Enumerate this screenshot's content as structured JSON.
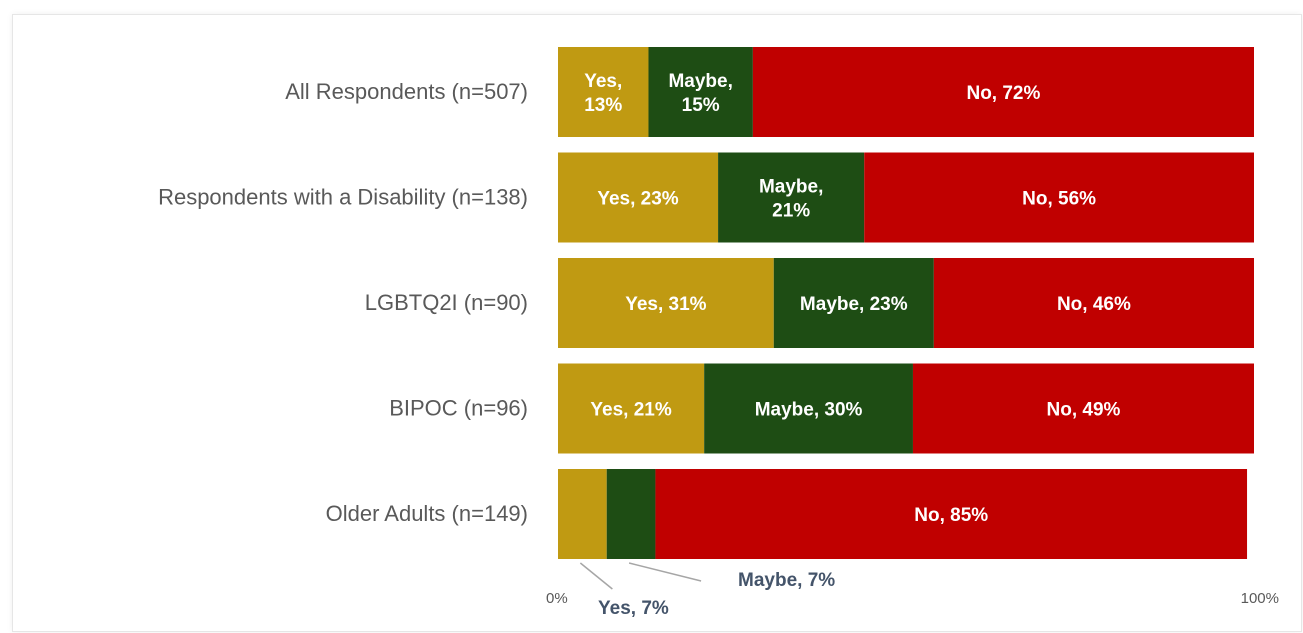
{
  "chart_data": {
    "type": "bar",
    "orientation": "horizontal",
    "stacked": true,
    "categories": [
      "All Respondents (n=507)",
      "Respondents with a Disability (n=138)",
      "LGBTQ2I (n=90)",
      "BIPOC (n=96)",
      "Older Adults (n=149)"
    ],
    "series": [
      {
        "name": "Yes",
        "color": "#c09a12",
        "values": [
          13,
          23,
          31,
          21,
          7
        ],
        "labels": [
          [
            "Yes,",
            "13%"
          ],
          [
            "Yes, 23%"
          ],
          [
            "Yes, 31%"
          ],
          [
            "Yes, 21%"
          ],
          []
        ]
      },
      {
        "name": "Maybe",
        "color": "#1e4d14",
        "values": [
          15,
          21,
          23,
          30,
          7
        ],
        "labels": [
          [
            "Maybe,",
            "15%"
          ],
          [
            "Maybe,",
            "21%"
          ],
          [
            "Maybe, 23%"
          ],
          [
            "Maybe, 30%"
          ],
          []
        ]
      },
      {
        "name": "No",
        "color": "#c00000",
        "values": [
          72,
          56,
          46,
          49,
          85
        ],
        "labels": [
          [
            "No, 72%"
          ],
          [
            "No, 56%"
          ],
          [
            "No, 46%"
          ],
          [
            "No, 49%"
          ],
          [
            "No, 85%"
          ]
        ]
      }
    ],
    "callouts": [
      {
        "category_index": 4,
        "series_index": 0,
        "text": "Yes, 7%"
      },
      {
        "category_index": 4,
        "series_index": 1,
        "text": "Maybe, 7%"
      }
    ],
    "x_ticks": [
      "0%",
      "100%"
    ],
    "xlim": [
      0,
      100
    ],
    "title": "",
    "xlabel": "",
    "ylabel": "",
    "grid": false,
    "legend": "none"
  }
}
